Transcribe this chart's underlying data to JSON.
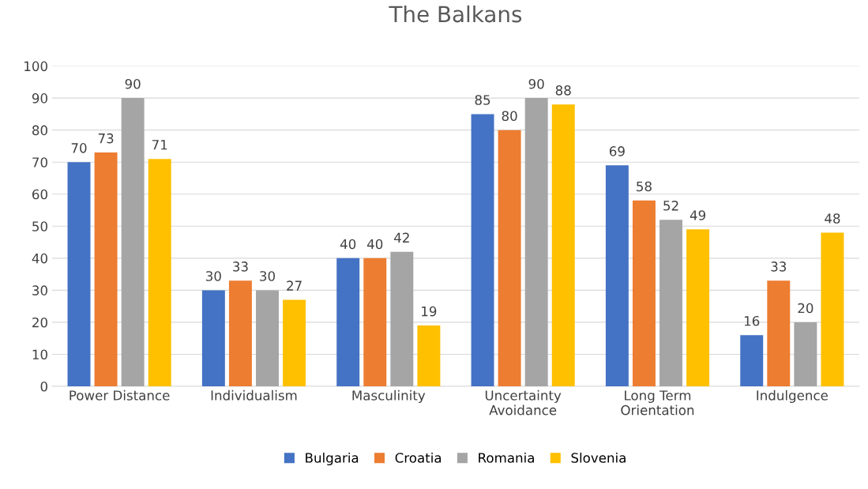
{
  "chart_data": {
    "type": "bar",
    "title": "The Balkans",
    "categories": [
      "Power Distance",
      "Individualism",
      "Masculinity",
      "Uncertainty\nAvoidance",
      "Long Term\nOrientation",
      "Indulgence"
    ],
    "series": [
      {
        "name": "Bulgaria",
        "color": "#4472c4",
        "values": [
          70,
          30,
          40,
          85,
          69,
          16
        ]
      },
      {
        "name": "Croatia",
        "color": "#ed7d31",
        "values": [
          73,
          33,
          40,
          80,
          58,
          33
        ]
      },
      {
        "name": "Romania",
        "color": "#a5a5a5",
        "values": [
          90,
          30,
          42,
          90,
          52,
          20
        ]
      },
      {
        "name": "Slovenia",
        "color": "#ffc000",
        "values": [
          71,
          27,
          19,
          88,
          49,
          48
        ]
      }
    ],
    "ylim": [
      0,
      100
    ],
    "yticks": [
      0,
      10,
      20,
      30,
      40,
      50,
      60,
      70,
      80,
      90,
      100
    ],
    "grid": "y",
    "legend": "bottom",
    "data_labels": true
  }
}
